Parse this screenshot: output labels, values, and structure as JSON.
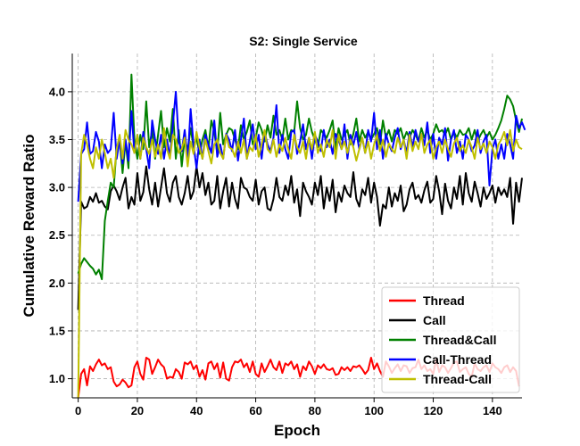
{
  "chart_data": {
    "type": "line",
    "title": "S2: Single Service",
    "xlabel": "Epoch",
    "ylabel": "Cumulative Reward Ratio",
    "xlim": [
      -2,
      150
    ],
    "ylim": [
      0.8,
      4.4
    ],
    "xticks": [
      0,
      20,
      40,
      60,
      80,
      100,
      120,
      140
    ],
    "yticks": [
      1.0,
      1.5,
      2.0,
      2.5,
      3.0,
      3.5,
      4.0
    ],
    "grid": true,
    "legend_position": "lower-right",
    "series": [
      {
        "name": "Thread",
        "color": "#ff0000",
        "values": [
          0.8,
          1.05,
          1.1,
          0.93,
          1.13,
          1.08,
          1.15,
          1.2,
          1.14,
          1.16,
          1.1,
          1.12,
          0.97,
          0.92,
          0.94,
          0.99,
          0.96,
          0.91,
          0.93,
          1.12,
          1.18,
          1.05,
          0.99,
          1.22,
          1.2,
          1.05,
          1.12,
          1.2,
          1.15,
          1.12,
          1.0,
          1.02,
          1.01,
          1.1,
          1.07,
          1.0,
          1.17,
          1.15,
          1.18,
          1.1,
          1.14,
          1.02,
          1.09,
          0.99,
          1.16,
          1.18,
          1.1,
          1.16,
          1.01,
          1.17,
          1.0,
          0.98,
          1.12,
          1.18,
          1.17,
          1.2,
          1.12,
          1.16,
          1.07,
          1.18,
          1.05,
          1.02,
          1.16,
          1.07,
          1.13,
          1.2,
          1.12,
          1.09,
          1.18,
          1.06,
          1.16,
          1.14,
          1.18,
          1.1,
          1.15,
          1.02,
          1.13,
          1.09,
          1.18,
          1.13,
          1.05,
          1.14,
          1.11,
          1.15,
          1.1,
          1.09,
          1.11,
          1.04,
          1.05,
          1.12,
          1.09,
          1.12,
          1.08,
          1.13,
          1.12,
          1.14,
          1.1,
          1.05,
          1.09,
          1.22,
          1.1,
          1.16,
          1.08,
          1.02,
          1.18,
          1.13,
          1.06,
          1.11,
          1.15,
          1.08,
          1.14,
          1.13,
          1.06,
          1.11,
          1.12,
          1.2,
          1.1,
          1.14,
          1.08,
          1.1,
          1.05,
          1.2,
          1.07,
          1.14,
          1.12,
          1.06,
          1.11,
          1.17,
          1.18,
          1.07,
          1.1,
          1.12,
          1.05,
          1.02,
          1.16,
          1.1,
          1.08,
          1.12,
          1.14,
          1.07,
          1.16,
          1.12,
          1.1,
          1.06,
          1.12,
          1.14,
          1.07,
          1.12,
          1.08,
          0.92
        ]
      },
      {
        "name": "Call",
        "color": "#000000",
        "values": [
          1.72,
          2.85,
          2.78,
          2.8,
          2.9,
          2.85,
          2.94,
          2.84,
          2.86,
          2.8,
          2.77,
          2.96,
          3.02,
          2.96,
          2.87,
          3.0,
          3.1,
          2.78,
          2.9,
          2.82,
          3.15,
          2.86,
          2.95,
          3.22,
          2.98,
          2.82,
          3.05,
          2.8,
          3.0,
          3.2,
          2.94,
          2.85,
          3.05,
          3.12,
          2.9,
          2.82,
          2.94,
          3.12,
          2.88,
          2.96,
          3.22,
          3.0,
          3.15,
          2.92,
          3.05,
          2.82,
          2.86,
          3.12,
          2.78,
          2.96,
          3.1,
          2.8,
          3.05,
          2.88,
          2.78,
          3.1,
          3.0,
          2.98,
          2.9,
          2.86,
          3.08,
          2.82,
          2.96,
          3.0,
          2.78,
          2.76,
          2.88,
          3.1,
          2.9,
          2.86,
          3.02,
          2.92,
          3.12,
          2.84,
          2.98,
          2.7,
          3.05,
          2.96,
          2.9,
          2.82,
          3.05,
          2.92,
          3.12,
          2.78,
          3.0,
          2.86,
          3.08,
          2.74,
          2.95,
          2.85,
          3.02,
          2.94,
          2.9,
          3.16,
          2.88,
          2.8,
          2.98,
          2.92,
          3.1,
          2.84,
          3.05,
          2.9,
          2.6,
          2.82,
          2.78,
          3.0,
          2.8,
          2.94,
          2.86,
          3.02,
          2.75,
          2.82,
          2.98,
          3.05,
          2.88,
          2.92,
          2.84,
          2.97,
          3.06,
          2.84,
          2.88,
          3.12,
          2.96,
          2.72,
          3.04,
          2.86,
          2.78,
          3.0,
          2.88,
          3.12,
          2.82,
          3.15,
          2.94,
          2.85,
          3.06,
          2.94,
          2.8,
          3.0,
          2.88,
          2.94,
          3.02,
          2.84,
          3.0,
          2.92,
          2.98,
          2.9,
          3.1,
          2.62,
          3.05,
          2.85,
          3.1
        ]
      },
      {
        "name": "Thread&Call",
        "color": "#008000",
        "values": [
          2.1,
          2.2,
          2.26,
          2.22,
          2.18,
          2.15,
          2.09,
          2.14,
          2.04,
          2.65,
          2.86,
          3.05,
          3.0,
          3.42,
          3.5,
          3.15,
          3.48,
          3.2,
          4.18,
          3.5,
          3.3,
          3.55,
          3.4,
          3.9,
          3.42,
          3.6,
          3.3,
          3.55,
          3.8,
          3.42,
          3.62,
          3.48,
          3.82,
          3.3,
          3.6,
          3.22,
          3.52,
          3.38,
          3.62,
          3.42,
          3.52,
          3.35,
          3.5,
          3.6,
          3.4,
          3.7,
          3.58,
          3.36,
          3.78,
          3.45,
          3.55,
          3.62,
          3.6,
          3.5,
          3.4,
          3.65,
          3.5,
          3.58,
          3.7,
          3.45,
          3.52,
          3.68,
          3.6,
          3.48,
          3.65,
          3.52,
          3.75,
          3.55,
          3.6,
          3.5,
          3.72,
          3.5,
          3.6,
          3.58,
          3.9,
          3.62,
          3.5,
          3.55,
          3.72,
          3.58,
          3.5,
          3.42,
          3.6,
          3.56,
          3.52,
          3.6,
          3.7,
          3.4,
          3.62,
          3.5,
          3.55,
          3.6,
          3.45,
          3.56,
          3.72,
          3.48,
          3.6,
          3.52,
          3.58,
          3.5,
          3.56,
          3.62,
          3.45,
          3.7,
          3.52,
          3.6,
          3.48,
          3.6,
          3.56,
          3.62,
          3.5,
          3.58,
          3.52,
          3.6,
          3.55,
          3.48,
          3.62,
          3.52,
          3.6,
          3.5,
          3.56,
          3.66,
          3.58,
          3.6,
          3.55,
          3.62,
          3.5,
          3.58,
          3.52,
          3.6,
          3.55,
          3.56,
          3.62,
          3.5,
          3.6,
          3.48,
          3.55,
          3.6,
          3.52,
          3.58,
          3.5,
          3.55,
          3.62,
          3.7,
          3.82,
          3.96,
          3.92,
          3.85,
          3.7,
          3.58,
          3.72
        ]
      },
      {
        "name": "Call-Thread",
        "color": "#0000ff",
        "values": [
          2.85,
          3.35,
          3.4,
          3.68,
          3.35,
          3.38,
          3.58,
          3.48,
          3.2,
          3.45,
          3.36,
          3.4,
          3.78,
          3.3,
          3.5,
          3.25,
          3.5,
          3.28,
          3.8,
          3.36,
          3.55,
          3.3,
          3.58,
          3.4,
          3.2,
          3.7,
          3.5,
          3.35,
          3.55,
          3.3,
          3.5,
          3.32,
          3.66,
          4.0,
          3.48,
          3.38,
          3.6,
          3.28,
          3.82,
          3.44,
          3.2,
          3.5,
          3.3,
          3.55,
          3.45,
          3.36,
          3.7,
          3.32,
          3.45,
          3.3,
          3.56,
          3.5,
          3.38,
          3.6,
          3.28,
          3.5,
          3.72,
          3.3,
          3.48,
          3.66,
          3.4,
          3.55,
          3.3,
          3.58,
          3.45,
          3.38,
          3.52,
          3.86,
          3.36,
          3.55,
          3.4,
          3.3,
          3.58,
          3.6,
          3.35,
          3.48,
          3.66,
          3.4,
          3.52,
          3.3,
          3.55,
          3.48,
          3.38,
          3.6,
          3.42,
          3.5,
          3.35,
          3.56,
          3.5,
          3.4,
          3.66,
          3.3,
          3.55,
          3.44,
          3.58,
          3.4,
          3.52,
          3.36,
          3.6,
          3.48,
          3.78,
          3.4,
          3.6,
          3.3,
          3.56,
          3.45,
          3.38,
          3.52,
          3.62,
          3.4,
          3.5,
          3.36,
          3.58,
          3.42,
          3.6,
          3.48,
          3.56,
          3.44,
          3.68,
          3.36,
          3.56,
          3.3,
          3.52,
          3.45,
          3.62,
          3.28,
          3.5,
          3.6,
          3.36,
          3.48,
          3.3,
          3.55,
          3.5,
          3.38,
          3.44,
          3.6,
          3.36,
          3.48,
          3.55,
          3.02,
          3.4,
          3.5,
          3.3,
          3.45,
          3.3,
          3.56,
          3.45,
          3.3,
          3.75,
          3.62,
          3.68,
          3.6
        ]
      },
      {
        "name": "Thread-Call",
        "color": "#bfbf00",
        "values": [
          0.8,
          3.35,
          3.55,
          3.45,
          3.3,
          3.2,
          3.42,
          3.3,
          3.5,
          3.36,
          3.2,
          3.3,
          3.1,
          3.4,
          3.55,
          3.3,
          3.6,
          3.5,
          3.45,
          3.36,
          3.55,
          3.3,
          3.52,
          3.42,
          3.35,
          3.5,
          3.32,
          3.45,
          3.3,
          3.62,
          3.4,
          3.3,
          3.55,
          3.5,
          3.36,
          3.4,
          3.52,
          3.22,
          3.48,
          3.35,
          3.58,
          3.42,
          3.3,
          3.5,
          3.38,
          3.25,
          3.45,
          3.5,
          3.36,
          3.3,
          3.55,
          3.42,
          3.4,
          3.32,
          3.48,
          3.36,
          3.5,
          3.3,
          3.42,
          3.38,
          3.55,
          3.32,
          3.45,
          3.6,
          3.4,
          3.36,
          3.5,
          3.32,
          3.45,
          3.38,
          3.52,
          3.4,
          3.3,
          3.55,
          3.42,
          3.36,
          3.48,
          3.3,
          3.52,
          3.4,
          3.58,
          3.36,
          3.45,
          3.32,
          3.5,
          3.42,
          3.6,
          3.3,
          3.55,
          3.4,
          3.48,
          3.36,
          3.5,
          3.42,
          3.28,
          3.4,
          3.52,
          3.36,
          3.48,
          3.3,
          3.45,
          3.55,
          3.38,
          3.5,
          3.32,
          3.46,
          3.4,
          3.36,
          3.52,
          3.42,
          3.5,
          3.3,
          3.55,
          3.38,
          3.48,
          3.4,
          3.56,
          3.36,
          3.45,
          3.5,
          3.3,
          3.42,
          3.48,
          3.36,
          3.5,
          3.4,
          3.32,
          3.46,
          3.52,
          3.38,
          3.44,
          3.36,
          3.5,
          3.42,
          3.3,
          3.52,
          3.4,
          3.46,
          3.36,
          3.48,
          3.42,
          3.3,
          3.45,
          3.5,
          3.58,
          3.44,
          3.6,
          3.38,
          3.5,
          3.42,
          3.4
        ]
      }
    ]
  }
}
